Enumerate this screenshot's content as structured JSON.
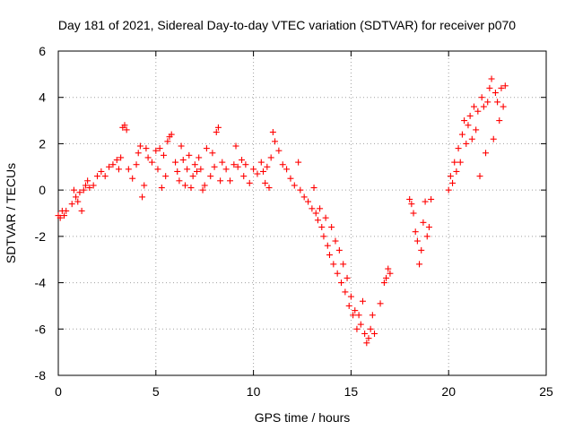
{
  "chart_data": {
    "type": "scatter",
    "title": "Day 181 of 2021, Sidereal Day-to-day VTEC variation (SDTVAR) for receiver p070",
    "xlabel": "GPS time / hours",
    "ylabel": "SDTVAR / TECUs",
    "xlim": [
      0,
      25
    ],
    "ylim": [
      -8,
      6
    ],
    "xticks": [
      0,
      5,
      10,
      15,
      20,
      25
    ],
    "yticks": [
      -8,
      -6,
      -4,
      -2,
      0,
      2,
      4,
      6
    ],
    "grid": true,
    "marker": "+",
    "color": "#ff0000",
    "series": [
      {
        "name": "SDTVAR",
        "points": [
          [
            0.0,
            -1.1
          ],
          [
            0.1,
            -1.2
          ],
          [
            0.2,
            -0.9
          ],
          [
            0.3,
            -1.1
          ],
          [
            0.4,
            -0.9
          ],
          [
            0.7,
            -0.6
          ],
          [
            0.8,
            0.0
          ],
          [
            0.9,
            -0.3
          ],
          [
            1.0,
            -0.5
          ],
          [
            1.1,
            -0.1
          ],
          [
            1.2,
            -0.9
          ],
          [
            1.3,
            0.0
          ],
          [
            1.4,
            0.2
          ],
          [
            1.5,
            0.4
          ],
          [
            1.6,
            0.1
          ],
          [
            1.8,
            0.2
          ],
          [
            2.0,
            0.6
          ],
          [
            2.2,
            0.8
          ],
          [
            2.4,
            0.6
          ],
          [
            2.6,
            1.0
          ],
          [
            2.8,
            1.1
          ],
          [
            3.0,
            1.3
          ],
          [
            3.1,
            0.9
          ],
          [
            3.2,
            1.4
          ],
          [
            3.3,
            2.7
          ],
          [
            3.4,
            2.8
          ],
          [
            3.5,
            2.6
          ],
          [
            3.6,
            0.9
          ],
          [
            3.8,
            0.5
          ],
          [
            4.0,
            1.1
          ],
          [
            4.1,
            1.6
          ],
          [
            4.2,
            1.9
          ],
          [
            4.3,
            -0.3
          ],
          [
            4.4,
            0.2
          ],
          [
            4.5,
            1.8
          ],
          [
            4.6,
            1.4
          ],
          [
            4.8,
            1.2
          ],
          [
            5.0,
            1.7
          ],
          [
            5.1,
            0.9
          ],
          [
            5.2,
            1.8
          ],
          [
            5.3,
            0.1
          ],
          [
            5.4,
            1.5
          ],
          [
            5.5,
            0.6
          ],
          [
            5.6,
            2.1
          ],
          [
            5.7,
            2.3
          ],
          [
            5.8,
            2.4
          ],
          [
            6.0,
            1.2
          ],
          [
            6.1,
            0.8
          ],
          [
            6.2,
            0.4
          ],
          [
            6.3,
            1.9
          ],
          [
            6.4,
            1.3
          ],
          [
            6.5,
            0.2
          ],
          [
            6.6,
            0.9
          ],
          [
            6.7,
            1.5
          ],
          [
            6.8,
            0.1
          ],
          [
            6.9,
            0.6
          ],
          [
            7.0,
            1.1
          ],
          [
            7.1,
            0.8
          ],
          [
            7.2,
            1.4
          ],
          [
            7.3,
            0.9
          ],
          [
            7.4,
            0.0
          ],
          [
            7.5,
            0.2
          ],
          [
            7.6,
            1.8
          ],
          [
            7.8,
            0.6
          ],
          [
            7.9,
            1.6
          ],
          [
            8.0,
            1.0
          ],
          [
            8.1,
            2.5
          ],
          [
            8.2,
            2.7
          ],
          [
            8.3,
            0.4
          ],
          [
            8.4,
            1.2
          ],
          [
            8.6,
            0.9
          ],
          [
            8.8,
            0.4
          ],
          [
            9.0,
            1.1
          ],
          [
            9.1,
            1.9
          ],
          [
            9.2,
            1.0
          ],
          [
            9.4,
            1.3
          ],
          [
            9.5,
            0.6
          ],
          [
            9.6,
            1.1
          ],
          [
            9.8,
            0.3
          ],
          [
            10.0,
            0.9
          ],
          [
            10.2,
            0.7
          ],
          [
            10.4,
            1.2
          ],
          [
            10.5,
            0.8
          ],
          [
            10.6,
            0.3
          ],
          [
            10.7,
            1.0
          ],
          [
            10.8,
            0.1
          ],
          [
            10.9,
            1.4
          ],
          [
            11.0,
            2.5
          ],
          [
            11.1,
            2.1
          ],
          [
            11.3,
            1.7
          ],
          [
            11.5,
            1.1
          ],
          [
            11.7,
            0.9
          ],
          [
            11.9,
            0.5
          ],
          [
            12.1,
            0.2
          ],
          [
            12.3,
            1.2
          ],
          [
            12.4,
            0.0
          ],
          [
            12.6,
            -0.3
          ],
          [
            12.8,
            -0.5
          ],
          [
            13.0,
            -0.8
          ],
          [
            13.1,
            0.1
          ],
          [
            13.2,
            -1.0
          ],
          [
            13.3,
            -1.3
          ],
          [
            13.4,
            -0.8
          ],
          [
            13.5,
            -1.6
          ],
          [
            13.6,
            -2.0
          ],
          [
            13.7,
            -1.2
          ],
          [
            13.8,
            -2.4
          ],
          [
            13.9,
            -2.8
          ],
          [
            14.0,
            -1.6
          ],
          [
            14.1,
            -3.2
          ],
          [
            14.2,
            -2.2
          ],
          [
            14.3,
            -3.6
          ],
          [
            14.4,
            -2.6
          ],
          [
            14.5,
            -4.0
          ],
          [
            14.6,
            -3.2
          ],
          [
            14.7,
            -4.4
          ],
          [
            14.8,
            -3.8
          ],
          [
            14.9,
            -5.0
          ],
          [
            15.0,
            -4.6
          ],
          [
            15.1,
            -5.4
          ],
          [
            15.2,
            -5.2
          ],
          [
            15.3,
            -6.0
          ],
          [
            15.4,
            -5.4
          ],
          [
            15.5,
            -5.8
          ],
          [
            15.6,
            -4.8
          ],
          [
            15.7,
            -6.2
          ],
          [
            15.8,
            -6.6
          ],
          [
            15.9,
            -6.4
          ],
          [
            16.0,
            -6.0
          ],
          [
            16.1,
            -5.4
          ],
          [
            16.2,
            -6.2
          ],
          [
            16.5,
            -4.9
          ],
          [
            16.7,
            -4.0
          ],
          [
            16.8,
            -3.8
          ],
          [
            16.9,
            -3.4
          ],
          [
            17.0,
            -3.6
          ],
          [
            18.0,
            -0.4
          ],
          [
            18.1,
            -0.6
          ],
          [
            18.2,
            -1.0
          ],
          [
            18.3,
            -1.8
          ],
          [
            18.4,
            -2.2
          ],
          [
            18.5,
            -3.2
          ],
          [
            18.6,
            -2.6
          ],
          [
            18.7,
            -1.4
          ],
          [
            18.8,
            -0.5
          ],
          [
            18.9,
            -2.0
          ],
          [
            19.0,
            -1.6
          ],
          [
            19.1,
            -0.4
          ],
          [
            20.0,
            0.0
          ],
          [
            20.1,
            0.6
          ],
          [
            20.2,
            0.3
          ],
          [
            20.3,
            1.2
          ],
          [
            20.4,
            0.8
          ],
          [
            20.5,
            1.8
          ],
          [
            20.6,
            1.2
          ],
          [
            20.7,
            2.4
          ],
          [
            20.8,
            3.0
          ],
          [
            20.9,
            2.0
          ],
          [
            21.0,
            2.8
          ],
          [
            21.1,
            3.2
          ],
          [
            21.2,
            2.2
          ],
          [
            21.3,
            3.6
          ],
          [
            21.4,
            2.6
          ],
          [
            21.5,
            3.4
          ],
          [
            21.6,
            0.6
          ],
          [
            21.7,
            4.0
          ],
          [
            21.8,
            3.6
          ],
          [
            21.9,
            1.6
          ],
          [
            22.0,
            3.8
          ],
          [
            22.1,
            4.4
          ],
          [
            22.2,
            4.8
          ],
          [
            22.3,
            2.2
          ],
          [
            22.4,
            4.2
          ],
          [
            22.5,
            3.8
          ],
          [
            22.6,
            3.0
          ],
          [
            22.7,
            4.4
          ],
          [
            22.8,
            3.6
          ],
          [
            22.9,
            4.5
          ]
        ]
      }
    ]
  }
}
